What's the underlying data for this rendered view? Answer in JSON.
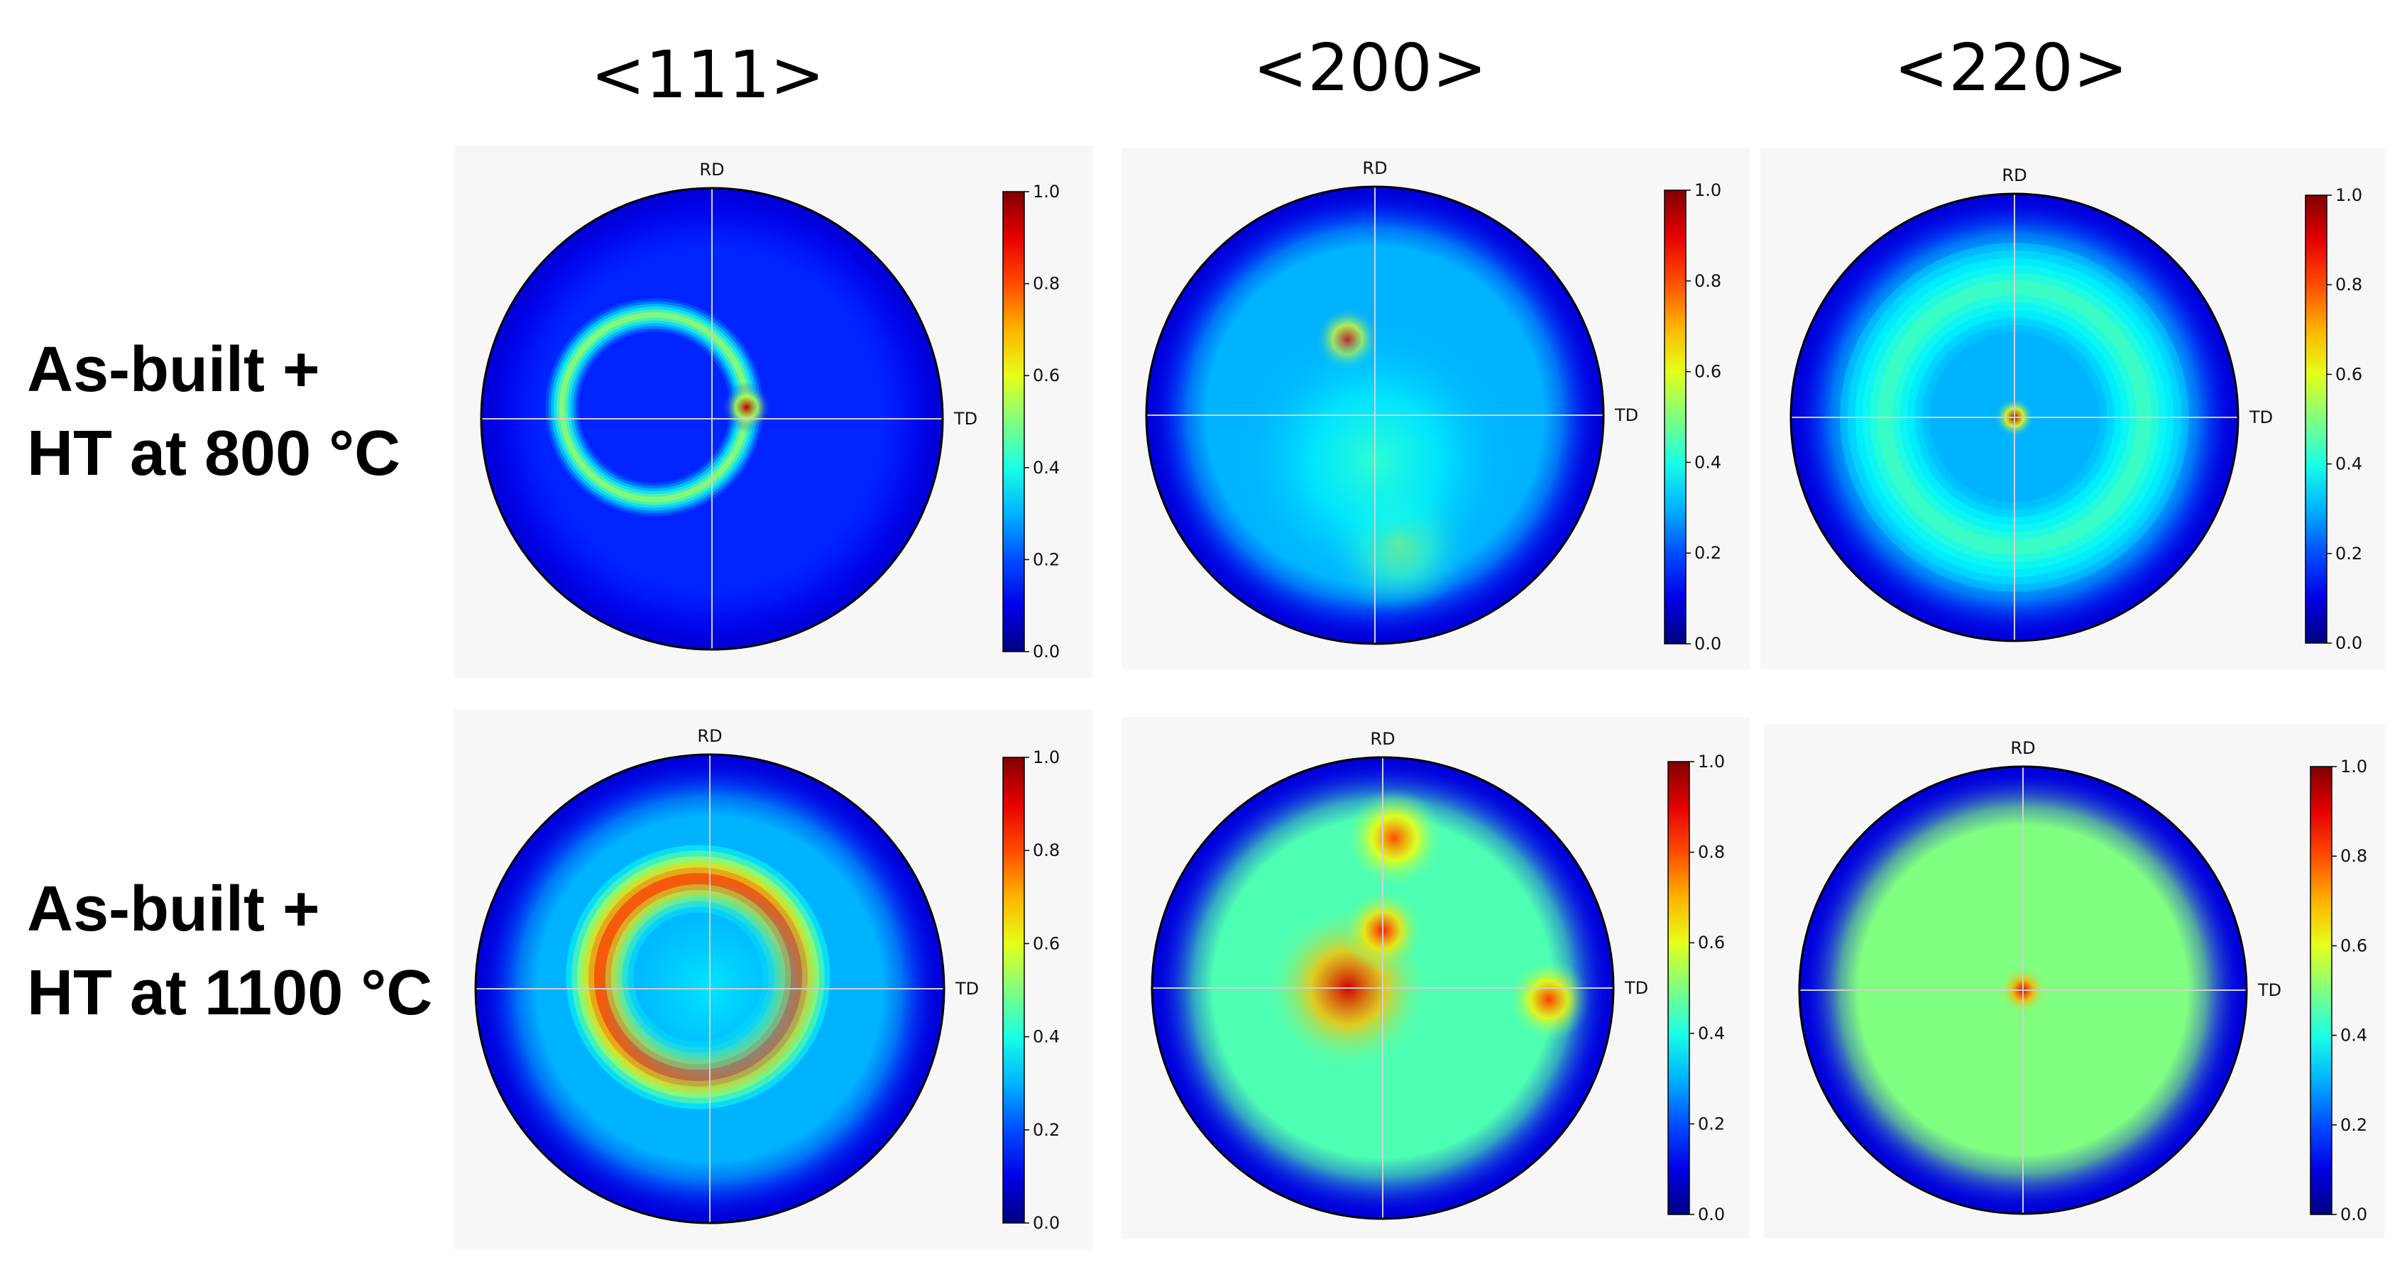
{
  "column_titles": [
    "<111>",
    "<200>",
    "<220>"
  ],
  "row_labels": [
    {
      "line1": "As-built +",
      "line2": "HT at 800 °C"
    },
    {
      "line1": "As-built +",
      "line2": "HT at 1100 °C"
    }
  ],
  "chart_data": [
    {
      "type": "heatmap",
      "pole": "<111>",
      "condition": "As-built + HT at 800 °C",
      "axis_labels": {
        "top": "RD",
        "right": "TD"
      },
      "colorbar": {
        "min": 0.0,
        "max": 1.0,
        "ticks": [
          "0.0",
          "0.2",
          "0.4",
          "0.6",
          "0.8",
          "1.0"
        ],
        "colormap": "jet"
      },
      "background": 0.16,
      "features": [
        {
          "kind": "ring",
          "center": [
            -0.25,
            0.05
          ],
          "radius": 0.4,
          "width": 0.09,
          "value": 0.55
        },
        {
          "kind": "spot",
          "center": [
            0.15,
            0.05
          ],
          "radius": 0.06,
          "value": 0.95
        }
      ]
    },
    {
      "type": "heatmap",
      "pole": "<200>",
      "condition": "As-built + HT at 800 °C",
      "axis_labels": {
        "top": "RD",
        "right": "TD"
      },
      "colorbar": {
        "min": 0.0,
        "max": 1.0,
        "ticks": [
          "0.0",
          "0.2",
          "0.4",
          "0.6",
          "0.8",
          "1.0"
        ],
        "colormap": "jet"
      },
      "background": 0.3,
      "features": [
        {
          "kind": "spot",
          "center": [
            -0.12,
            0.33
          ],
          "radius": 0.08,
          "value": 0.9
        },
        {
          "kind": "spot",
          "center": [
            0.1,
            -0.55
          ],
          "radius": 0.18,
          "value": 0.6
        },
        {
          "kind": "spot",
          "center": [
            0.0,
            -0.2
          ],
          "radius": 0.35,
          "value": 0.42
        }
      ]
    },
    {
      "type": "heatmap",
      "pole": "<220>",
      "condition": "As-built + HT at 800 °C",
      "axis_labels": {
        "top": "RD",
        "right": "TD"
      },
      "colorbar": {
        "min": 0.0,
        "max": 1.0,
        "ticks": [
          "0.0",
          "0.2",
          "0.4",
          "0.6",
          "0.8",
          "1.0"
        ],
        "colormap": "jet"
      },
      "background": 0.3,
      "features": [
        {
          "kind": "ring",
          "center": [
            0.0,
            0.0
          ],
          "radius": 0.58,
          "width": 0.25,
          "value": 0.45
        },
        {
          "kind": "spot",
          "center": [
            0.0,
            0.0
          ],
          "radius": 0.05,
          "value": 0.95
        }
      ]
    },
    {
      "type": "heatmap",
      "pole": "<111>",
      "condition": "As-built + HT at 1100 °C",
      "axis_labels": {
        "top": "RD",
        "right": "TD"
      },
      "colorbar": {
        "min": 0.0,
        "max": 1.0,
        "ticks": [
          "0.0",
          "0.2",
          "0.4",
          "0.6",
          "0.8",
          "1.0"
        ],
        "colormap": "jet"
      },
      "background": 0.3,
      "features": [
        {
          "kind": "ring",
          "center": [
            -0.05,
            0.05
          ],
          "radius": 0.42,
          "width": 0.18,
          "value": 0.85
        },
        {
          "kind": "spot",
          "center": [
            0.0,
            0.0
          ],
          "radius": 0.26,
          "value": 0.35
        }
      ]
    },
    {
      "type": "heatmap",
      "pole": "<200>",
      "condition": "As-built + HT at 1100 °C",
      "axis_labels": {
        "top": "RD",
        "right": "TD"
      },
      "colorbar": {
        "min": 0.0,
        "max": 1.0,
        "ticks": [
          "0.0",
          "0.2",
          "0.4",
          "0.6",
          "0.8",
          "1.0"
        ],
        "colormap": "jet"
      },
      "background": 0.45,
      "features": [
        {
          "kind": "spot",
          "center": [
            -0.15,
            0.0
          ],
          "radius": 0.2,
          "value": 0.92
        },
        {
          "kind": "spot",
          "center": [
            0.05,
            0.65
          ],
          "radius": 0.12,
          "value": 0.8
        },
        {
          "kind": "spot",
          "center": [
            0.72,
            -0.05
          ],
          "radius": 0.1,
          "value": 0.82
        },
        {
          "kind": "spot",
          "center": [
            0.0,
            0.25
          ],
          "radius": 0.1,
          "value": 0.85
        }
      ]
    },
    {
      "type": "heatmap",
      "pole": "<220>",
      "condition": "As-built + HT at 1100 °C",
      "axis_labels": {
        "top": "RD",
        "right": "TD"
      },
      "colorbar": {
        "min": 0.0,
        "max": 1.0,
        "ticks": [
          "0.0",
          "0.2",
          "0.4",
          "0.6",
          "0.8",
          "1.0"
        ],
        "colormap": "jet"
      },
      "background": 0.5,
      "features": [
        {
          "kind": "spot",
          "center": [
            0.0,
            0.0
          ],
          "radius": 0.06,
          "value": 0.9
        }
      ]
    }
  ]
}
